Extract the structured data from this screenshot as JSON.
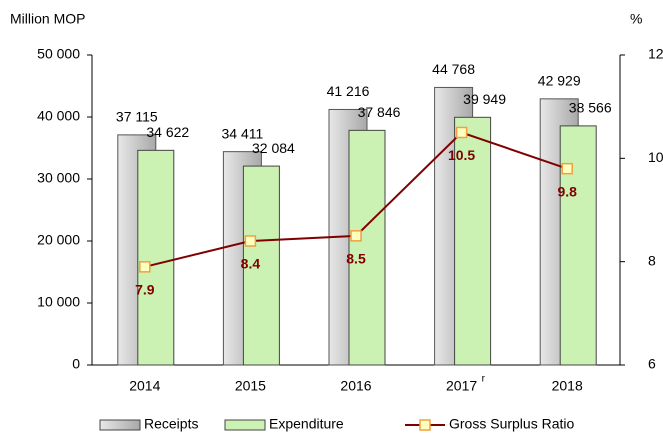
{
  "chart_data": {
    "type": "bar-line",
    "y_label": "Million MOP",
    "y2_label": "%",
    "categories": [
      "2014",
      "2015",
      "2016",
      "2017",
      "2018"
    ],
    "category_superscripts": [
      null,
      null,
      null,
      "r",
      null
    ],
    "series": [
      {
        "name": "Receipts",
        "type": "bar",
        "color": "#c0c0c0",
        "values": [
          37115,
          34411,
          41216,
          44768,
          42929
        ],
        "value_labels": [
          "37 115",
          "34 411",
          "41 216",
          "44 768",
          "42 929"
        ]
      },
      {
        "name": "Expenditure",
        "type": "bar",
        "color": "#ccf2b3",
        "values": [
          34622,
          32084,
          37846,
          39949,
          38566
        ],
        "value_labels": [
          "34 622",
          "32 084",
          "37 846",
          "39 949",
          "38 566"
        ]
      },
      {
        "name": "Gross Surplus Ratio",
        "type": "line",
        "axis": "y2",
        "color": "#800000",
        "marker_color": "#ffffc0",
        "values": [
          7.9,
          8.4,
          8.5,
          10.5,
          9.8
        ]
      }
    ],
    "ylim": [
      0,
      50000
    ],
    "yticks": [
      0,
      {
        "value": 10000,
        "label": "10 000"
      },
      {
        "value": 20000,
        "label": "20 000"
      },
      {
        "value": 30000,
        "label": "30 000"
      },
      {
        "value": 40000,
        "label": "40 000"
      },
      {
        "value": 50000,
        "label": "50 000"
      }
    ],
    "y2lim": [
      6,
      12
    ],
    "y2ticks": [
      6,
      8,
      10,
      12
    ],
    "legend": "bottom"
  }
}
